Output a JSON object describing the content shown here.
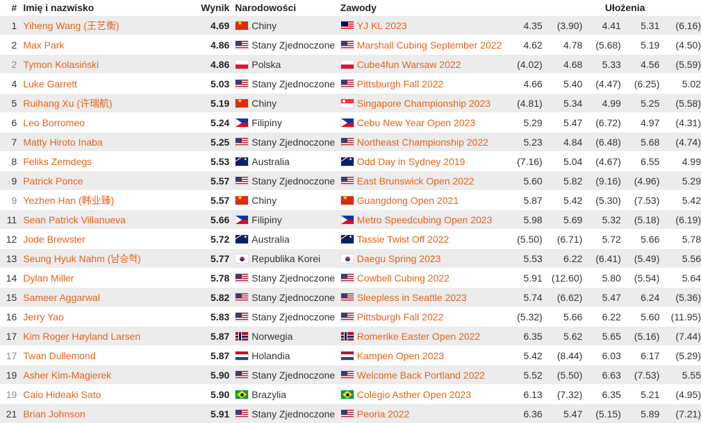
{
  "columns": {
    "pos": "#",
    "name": "Imię i nazwisko",
    "result": "Wynik",
    "nationality": "Narodowości",
    "competition": "Zawody",
    "attempts": "Ułożenia"
  },
  "rows": [
    {
      "pos": "1",
      "tie": false,
      "name": "Yiheng Wang (王艺衡)",
      "result": "4.69",
      "country": "Chiny",
      "country_flag": "china",
      "competition": "YJ KL 2023",
      "comp_flag": "malaysia",
      "attempts": [
        "4.35",
        "(3.90)",
        "4.41",
        "5.31",
        "(6.16)"
      ]
    },
    {
      "pos": "2",
      "tie": false,
      "name": "Max Park",
      "result": "4.86",
      "country": "Stany Zjednoczone",
      "country_flag": "usa",
      "competition": "Marshall Cubing September 2022",
      "comp_flag": "usa",
      "attempts": [
        "4.62",
        "4.78",
        "(5.68)",
        "5.19",
        "(4.50)"
      ]
    },
    {
      "pos": "2",
      "tie": true,
      "name": "Tymon Kolasiński",
      "result": "4.86",
      "country": "Polska",
      "country_flag": "poland",
      "competition": "Cube4fun Warsaw 2022",
      "comp_flag": "poland",
      "attempts": [
        "(4.02)",
        "4.68",
        "5.33",
        "4.56",
        "(5.59)"
      ]
    },
    {
      "pos": "4",
      "tie": false,
      "name": "Luke Garrett",
      "result": "5.03",
      "country": "Stany Zjednoczone",
      "country_flag": "usa",
      "competition": "Pittsburgh Fall 2022",
      "comp_flag": "usa",
      "attempts": [
        "4.66",
        "5.40",
        "(4.47)",
        "(6.25)",
        "5.02"
      ]
    },
    {
      "pos": "5",
      "tie": false,
      "name": "Ruihang Xu (许瑞航)",
      "result": "5.19",
      "country": "Chiny",
      "country_flag": "china",
      "competition": "Singapore Championship 2023",
      "comp_flag": "singapore",
      "attempts": [
        "(4.81)",
        "5.34",
        "4.99",
        "5.25",
        "(5.58)"
      ]
    },
    {
      "pos": "6",
      "tie": false,
      "name": "Leo Borromeo",
      "result": "5.24",
      "country": "Filipiny",
      "country_flag": "philippines",
      "competition": "Cebu New Year Open 2023",
      "comp_flag": "philippines",
      "attempts": [
        "5.29",
        "5.47",
        "(6.72)",
        "4.97",
        "(4.31)"
      ]
    },
    {
      "pos": "7",
      "tie": false,
      "name": "Matty Hiroto Inaba",
      "result": "5.25",
      "country": "Stany Zjednoczone",
      "country_flag": "usa",
      "competition": "Northeast Championship 2022",
      "comp_flag": "usa",
      "attempts": [
        "5.23",
        "4.84",
        "(6.48)",
        "5.68",
        "(4.74)"
      ]
    },
    {
      "pos": "8",
      "tie": false,
      "name": "Feliks Zemdegs",
      "result": "5.53",
      "country": "Australia",
      "country_flag": "australia",
      "competition": "Odd Day in Sydney 2019",
      "comp_flag": "australia",
      "attempts": [
        "(7.16)",
        "5.04",
        "(4.67)",
        "6.55",
        "4.99"
      ]
    },
    {
      "pos": "9",
      "tie": false,
      "name": "Patrick Ponce",
      "result": "5.57",
      "country": "Stany Zjednoczone",
      "country_flag": "usa",
      "competition": "East Brunswick Open 2022",
      "comp_flag": "usa",
      "attempts": [
        "5.60",
        "5.82",
        "(9.16)",
        "(4.96)",
        "5.29"
      ]
    },
    {
      "pos": "9",
      "tie": true,
      "name": "Yezhen Han (韩业臻)",
      "result": "5.57",
      "country": "Chiny",
      "country_flag": "china",
      "competition": "Guangdong Open 2021",
      "comp_flag": "china",
      "attempts": [
        "5.87",
        "5.42",
        "(5.30)",
        "(7.53)",
        "5.42"
      ]
    },
    {
      "pos": "11",
      "tie": false,
      "name": "Sean Patrick Villanueva",
      "result": "5.66",
      "country": "Filipiny",
      "country_flag": "philippines",
      "competition": "Metro Speedcubing Open 2023",
      "comp_flag": "philippines",
      "attempts": [
        "5.98",
        "5.69",
        "5.32",
        "(5.18)",
        "(6.19)"
      ]
    },
    {
      "pos": "12",
      "tie": false,
      "name": "Jode Brewster",
      "result": "5.72",
      "country": "Australia",
      "country_flag": "australia",
      "competition": "Tassie Twist Off 2022",
      "comp_flag": "australia",
      "attempts": [
        "(5.50)",
        "(6.71)",
        "5.72",
        "5.66",
        "5.78"
      ]
    },
    {
      "pos": "13",
      "tie": false,
      "name": "Seung Hyuk Nahm (남승혁)",
      "result": "5.77",
      "country": "Republika Korei",
      "country_flag": "korea",
      "competition": "Daegu Spring 2023",
      "comp_flag": "korea",
      "attempts": [
        "5.53",
        "6.22",
        "(6.41)",
        "(5.49)",
        "5.56"
      ]
    },
    {
      "pos": "14",
      "tie": false,
      "name": "Dylan Miller",
      "result": "5.78",
      "country": "Stany Zjednoczone",
      "country_flag": "usa",
      "competition": "Cowbell Cubing 2022",
      "comp_flag": "usa",
      "attempts": [
        "5.91",
        "(12.60)",
        "5.80",
        "(5.54)",
        "5.64"
      ]
    },
    {
      "pos": "15",
      "tie": false,
      "name": "Sameer Aggarwal",
      "result": "5.82",
      "country": "Stany Zjednoczone",
      "country_flag": "usa",
      "competition": "Sleepless in Seattle 2023",
      "comp_flag": "usa",
      "attempts": [
        "5.74",
        "(6.62)",
        "5.47",
        "6.24",
        "(5.36)"
      ]
    },
    {
      "pos": "16",
      "tie": false,
      "name": "Jerry Yao",
      "result": "5.83",
      "country": "Stany Zjednoczone",
      "country_flag": "usa",
      "competition": "Pittsburgh Fall 2022",
      "comp_flag": "usa",
      "attempts": [
        "(5.32)",
        "5.66",
        "6.22",
        "5.60",
        "(11.95)"
      ]
    },
    {
      "pos": "17",
      "tie": false,
      "name": "Kim Roger Høyland Larsen",
      "result": "5.87",
      "country": "Norwegia",
      "country_flag": "norway",
      "competition": "Romerike Easter Open 2022",
      "comp_flag": "norway",
      "attempts": [
        "6.35",
        "5.62",
        "5.65",
        "(5.16)",
        "(7.44)"
      ]
    },
    {
      "pos": "17",
      "tie": true,
      "name": "Twan Dullemond",
      "result": "5.87",
      "country": "Holandia",
      "country_flag": "netherlands",
      "competition": "Kampen Open 2023",
      "comp_flag": "netherlands",
      "attempts": [
        "5.42",
        "(8.44)",
        "6.03",
        "6.17",
        "(5.29)"
      ]
    },
    {
      "pos": "19",
      "tie": false,
      "name": "Asher Kim-Magierek",
      "result": "5.90",
      "country": "Stany Zjednoczone",
      "country_flag": "usa",
      "competition": "Welcome Back Portland 2022",
      "comp_flag": "usa",
      "attempts": [
        "5.52",
        "(5.50)",
        "6.63",
        "(7.53)",
        "5.55"
      ]
    },
    {
      "pos": "19",
      "tie": true,
      "name": "Caio Hideaki Sato",
      "result": "5.90",
      "country": "Brazylia",
      "country_flag": "brazil",
      "competition": "Colégio Asther Open 2023",
      "comp_flag": "brazil",
      "attempts": [
        "6.13",
        "(7.32)",
        "6.35",
        "5.21",
        "(4.95)"
      ]
    },
    {
      "pos": "21",
      "tie": false,
      "name": "Brian Johnson",
      "result": "5.91",
      "country": "Stany Zjednoczone",
      "country_flag": "usa",
      "competition": "Peoria 2022",
      "comp_flag": "usa",
      "attempts": [
        "6.36",
        "5.47",
        "(5.15)",
        "5.89",
        "(7.21)"
      ]
    }
  ],
  "colors": {
    "link": "#e8621a",
    "row_stripe": "#ececec",
    "tie_position": "#8a8a8a"
  }
}
